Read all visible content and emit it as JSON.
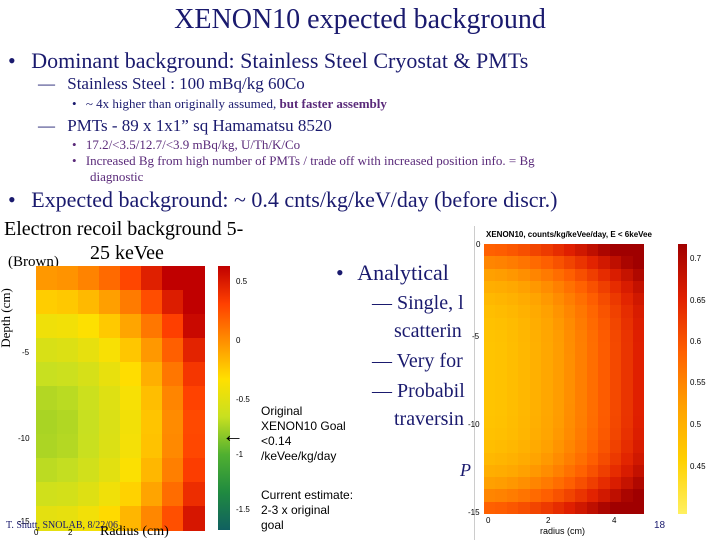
{
  "slide": {
    "title": "XENON10 expected background",
    "b1": "Dominant background: Stainless Steel Cryostat & PMTs",
    "b1_1": "Stainless Steel : 100 mBq/kg 60Co",
    "b1_1_1_a": "~ 4x higher than originally assumed, ",
    "b1_1_1_b": "but faster assembly",
    "b1_2": "PMTs - 89 x 1x1” sq Hamamatsu 8520",
    "b1_2_1": "17.2/<3.5/12.7/<3.9 mBq/kg,  U/Th/K/Co",
    "b1_2_2a": "Increased Bg from high number of PMTs / trade off with increased position info. = Bg",
    "b1_2_2b": "diagnostic",
    "b2": "Expected background: ~ 0.4 cnts/kg/keV/day (before discr.)",
    "dash": "—",
    "dot": "•"
  },
  "left_plot": {
    "title_line1": "Electron recoil background 5-",
    "title_line2": "25 keVee",
    "brown_label": "(Brown)",
    "ylabel": "Depth (cm)",
    "xlabel": "Radius (cm)",
    "y_ticks": [
      "-5",
      "-10",
      "-15"
    ],
    "x_ticks": [
      "0",
      "2"
    ],
    "cbar_ticks": [
      "0.5",
      "0",
      "-0.5",
      "-1",
      "-1.5"
    ]
  },
  "annotations": {
    "goal": [
      "Original",
      "XENON10 Goal",
      "<0.14",
      "/keVee/kg/day"
    ],
    "current": [
      "Current estimate:",
      "2-3 x original",
      "goal"
    ],
    "arrow": "←",
    "footer": "T. Shutt, SNOLAB, 8/22/06",
    "page": "18"
  },
  "right_text": {
    "bullet": "Analytical",
    "sub1": "Single, l",
    "sub1b": "scatterin",
    "sub2": "Very for",
    "sub3": "Probabil",
    "sub3b": "traversin",
    "formula": "P"
  },
  "right_plot": {
    "title": "XENON10, counts/kg/keVee/day,   E < 6keVee",
    "xlabel": "radius (cm)",
    "y_ticks": [
      "0",
      "-5",
      "-10",
      "-15"
    ],
    "x_ticks": [
      "0",
      "2",
      "4"
    ],
    "cbar_ticks": [
      "0.7",
      "0.65",
      "0.6",
      "0.55",
      "0.5",
      "0.45"
    ]
  },
  "colors": {
    "title": "#1a1a6e",
    "text_navy": "#1a1a6e",
    "accent_purple": "#5a2a7a",
    "heat_low": "#2a8a3a",
    "heat_high": "#d02010",
    "right_low": "#ffe000",
    "right_high": "#c00000"
  }
}
